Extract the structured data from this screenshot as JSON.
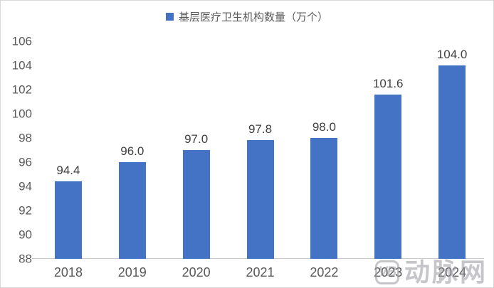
{
  "chart_data": {
    "type": "bar",
    "title": "基层医疗卫生机构数量（万个）",
    "legend_label": "基层医疗卫生机构数量（万个）",
    "legend_position": "top-center",
    "categories": [
      "2018",
      "2019",
      "2020",
      "2021",
      "2022",
      "2023",
      "2024"
    ],
    "values": [
      94.4,
      96.0,
      97.0,
      97.8,
      98.0,
      101.6,
      104.0
    ],
    "data_labels": [
      "94.4",
      "96.0",
      "97.0",
      "97.8",
      "98.0",
      "101.6",
      "104.0"
    ],
    "xlabel": "",
    "ylabel": "",
    "ylim": [
      88,
      106
    ],
    "ytick_step": 2,
    "ytick_labels": [
      "88",
      "90",
      "92",
      "94",
      "96",
      "98",
      "100",
      "102",
      "104",
      "106"
    ],
    "grid": false,
    "bar_color": "#4472C4"
  },
  "colors": {
    "bar": "#4472C4",
    "axis_labels": "#595959",
    "data_labels": "#404040",
    "axis_line": "#c8c8c8",
    "frame_border": "#d9d9d9",
    "watermark": "#98989e"
  },
  "watermark": {
    "logo_text": "VB",
    "text": "动脉网"
  }
}
